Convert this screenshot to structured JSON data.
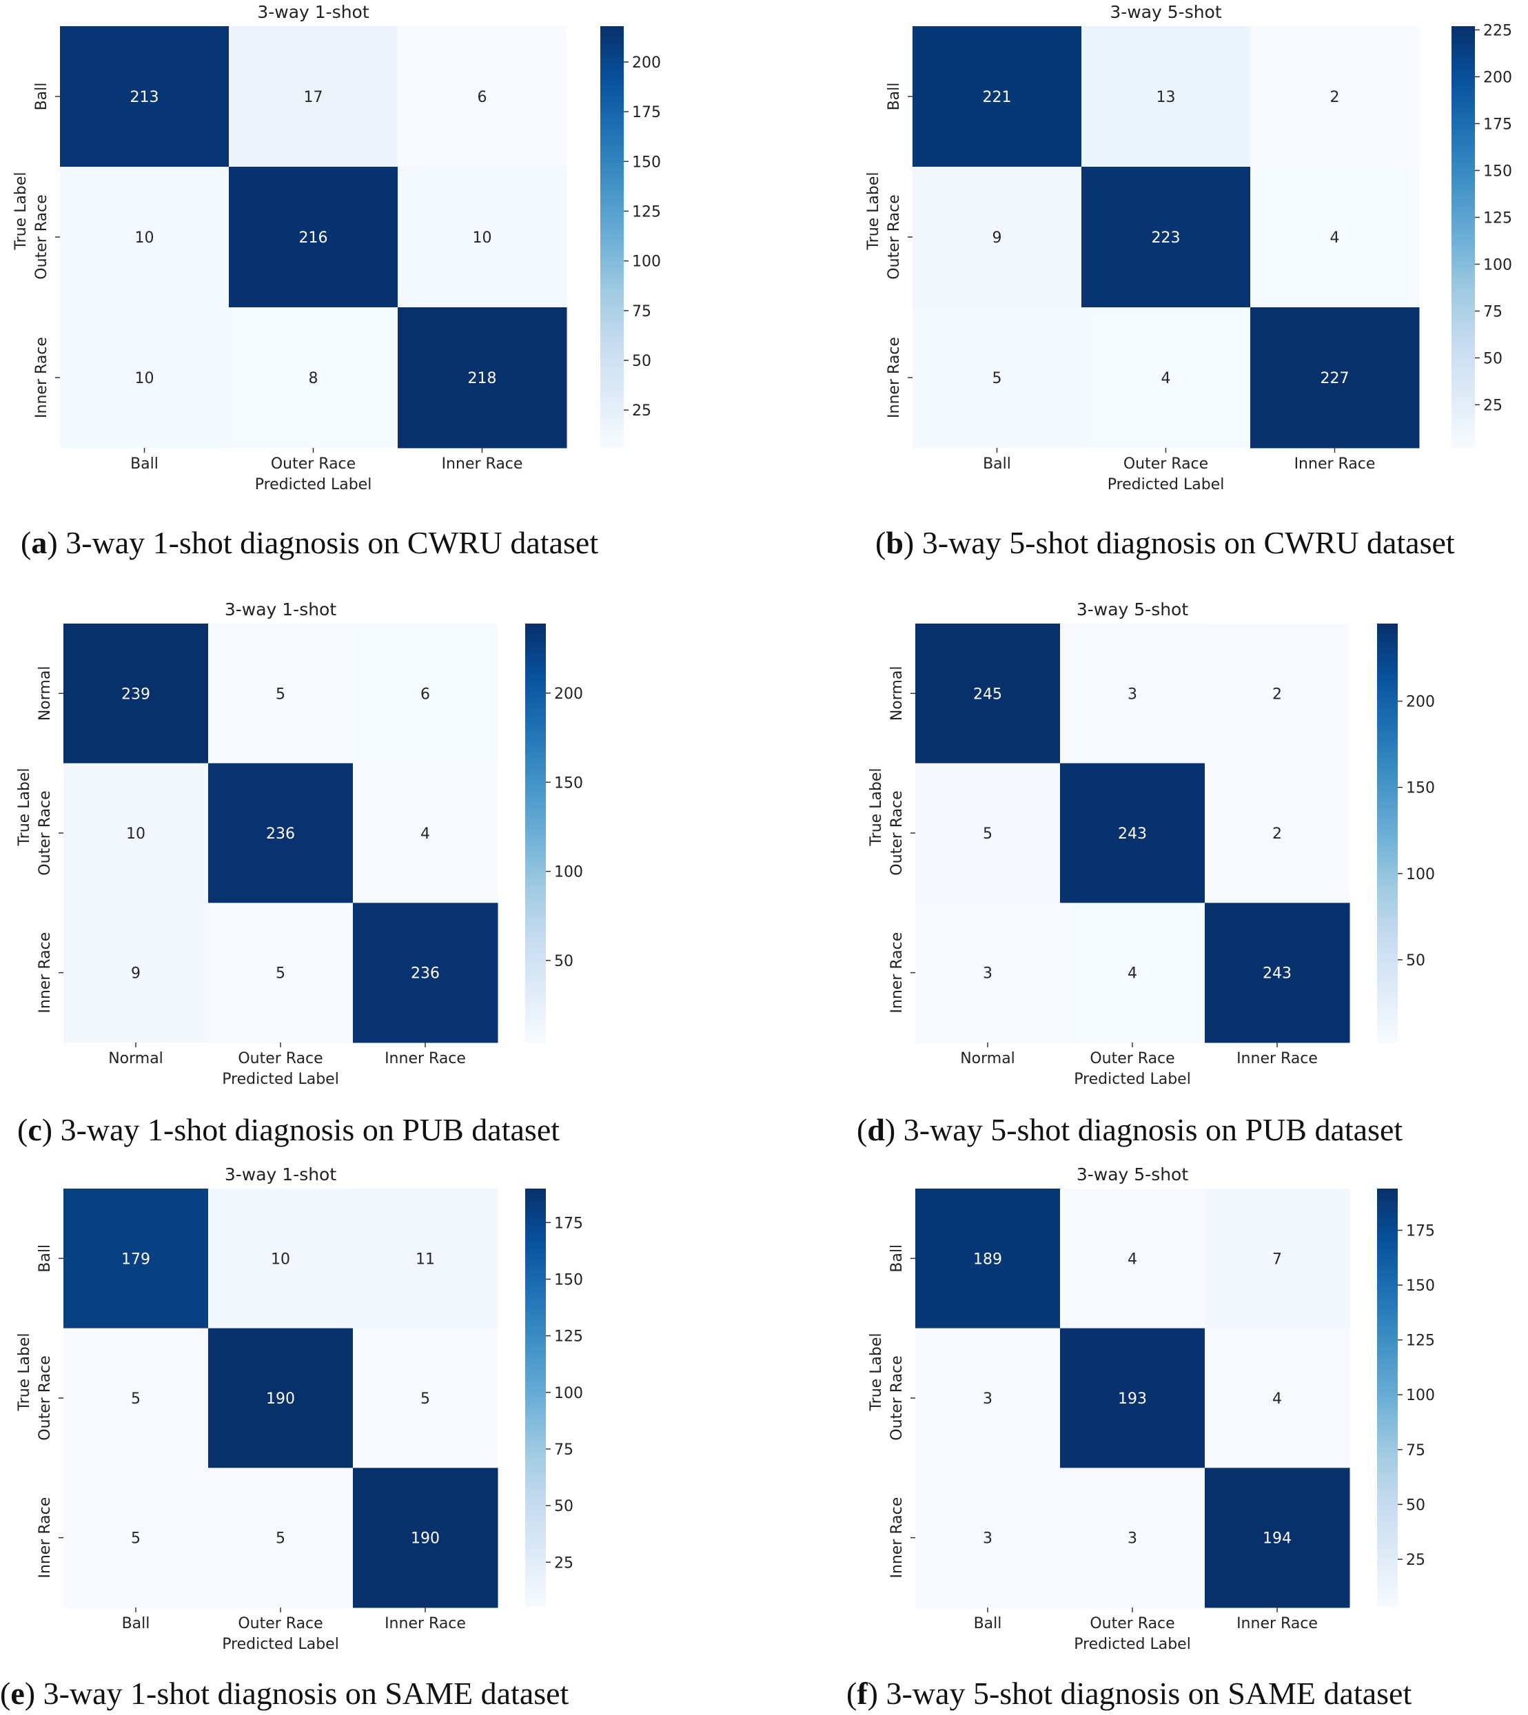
{
  "chart_data": [
    {
      "type": "heatmap",
      "title": "3-way 1-shot",
      "xlabel": "Predicted Label",
      "ylabel": "True Label",
      "x_categories": [
        "Ball",
        "Outer Race",
        "Inner Race"
      ],
      "y_categories": [
        "Ball",
        "Outer Race",
        "Inner Race"
      ],
      "matrix": [
        [
          213,
          17,
          6
        ],
        [
          10,
          216,
          10
        ],
        [
          10,
          8,
          218
        ]
      ],
      "colorbar_ticks": [
        25,
        50,
        75,
        100,
        125,
        150,
        175,
        200
      ],
      "colorbar_range": [
        6,
        218
      ],
      "caption": {
        "letter": "a",
        "text": " 3-way 1-shot diagnosis on CWRU dataset"
      }
    },
    {
      "type": "heatmap",
      "title": "3-way 5-shot",
      "xlabel": "Predicted Label",
      "ylabel": "True Label",
      "x_categories": [
        "Ball",
        "Outer Race",
        "Inner Race"
      ],
      "y_categories": [
        "Ball",
        "Outer Race",
        "Inner Race"
      ],
      "matrix": [
        [
          221,
          13,
          2
        ],
        [
          9,
          223,
          4
        ],
        [
          5,
          4,
          227
        ]
      ],
      "colorbar_ticks": [
        25,
        50,
        75,
        100,
        125,
        150,
        175,
        200,
        225
      ],
      "colorbar_range": [
        2,
        227
      ],
      "caption": {
        "letter": "b",
        "text": " 3-way 5-shot diagnosis on CWRU dataset"
      }
    },
    {
      "type": "heatmap",
      "title": "3-way 1-shot",
      "xlabel": "Predicted Label",
      "ylabel": "True Label",
      "x_categories": [
        "Normal",
        "Outer Race",
        "Inner Race"
      ],
      "y_categories": [
        "Normal",
        "Outer Race",
        "Inner Race"
      ],
      "matrix": [
        [
          239,
          5,
          6
        ],
        [
          10,
          236,
          4
        ],
        [
          9,
          5,
          236
        ]
      ],
      "colorbar_ticks": [
        50,
        100,
        150,
        200
      ],
      "colorbar_range": [
        4,
        239
      ],
      "caption": {
        "letter": "c",
        "text": " 3-way 1-shot diagnosis on PUB dataset"
      }
    },
    {
      "type": "heatmap",
      "title": "3-way 5-shot",
      "xlabel": "Predicted Label",
      "ylabel": "True Label",
      "x_categories": [
        "Normal",
        "Outer Race",
        "Inner Race"
      ],
      "y_categories": [
        "Normal",
        "Outer Race",
        "Inner Race"
      ],
      "matrix": [
        [
          245,
          3,
          2
        ],
        [
          5,
          243,
          2
        ],
        [
          3,
          4,
          243
        ]
      ],
      "colorbar_ticks": [
        50,
        100,
        150,
        200
      ],
      "colorbar_range": [
        2,
        245
      ],
      "caption": {
        "letter": "d",
        "text": " 3-way 5-shot diagnosis on PUB dataset"
      }
    },
    {
      "type": "heatmap",
      "title": "3-way 1-shot",
      "xlabel": "Predicted Label",
      "ylabel": "True Label",
      "x_categories": [
        "Ball",
        "Outer Race",
        "Inner Race"
      ],
      "y_categories": [
        "Ball",
        "Outer Race",
        "Inner Race"
      ],
      "matrix": [
        [
          179,
          10,
          11
        ],
        [
          5,
          190,
          5
        ],
        [
          5,
          5,
          190
        ]
      ],
      "colorbar_ticks": [
        25,
        50,
        75,
        100,
        125,
        150,
        175
      ],
      "colorbar_range": [
        5,
        190
      ],
      "caption": {
        "letter": "e",
        "text": " 3-way 1-shot diagnosis on SAME dataset"
      }
    },
    {
      "type": "heatmap",
      "title": "3-way 5-shot",
      "xlabel": "Predicted Label",
      "ylabel": "True Label",
      "x_categories": [
        "Ball",
        "Outer Race",
        "Inner Race"
      ],
      "y_categories": [
        "Ball",
        "Outer Race",
        "Inner Race"
      ],
      "matrix": [
        [
          189,
          4,
          7
        ],
        [
          3,
          193,
          4
        ],
        [
          3,
          3,
          194
        ]
      ],
      "colorbar_ticks": [
        25,
        50,
        75,
        100,
        125,
        150,
        175
      ],
      "colorbar_range": [
        3,
        194
      ],
      "caption": {
        "letter": "f",
        "text": " 3-way 5-shot diagnosis on SAME dataset"
      }
    }
  ]
}
